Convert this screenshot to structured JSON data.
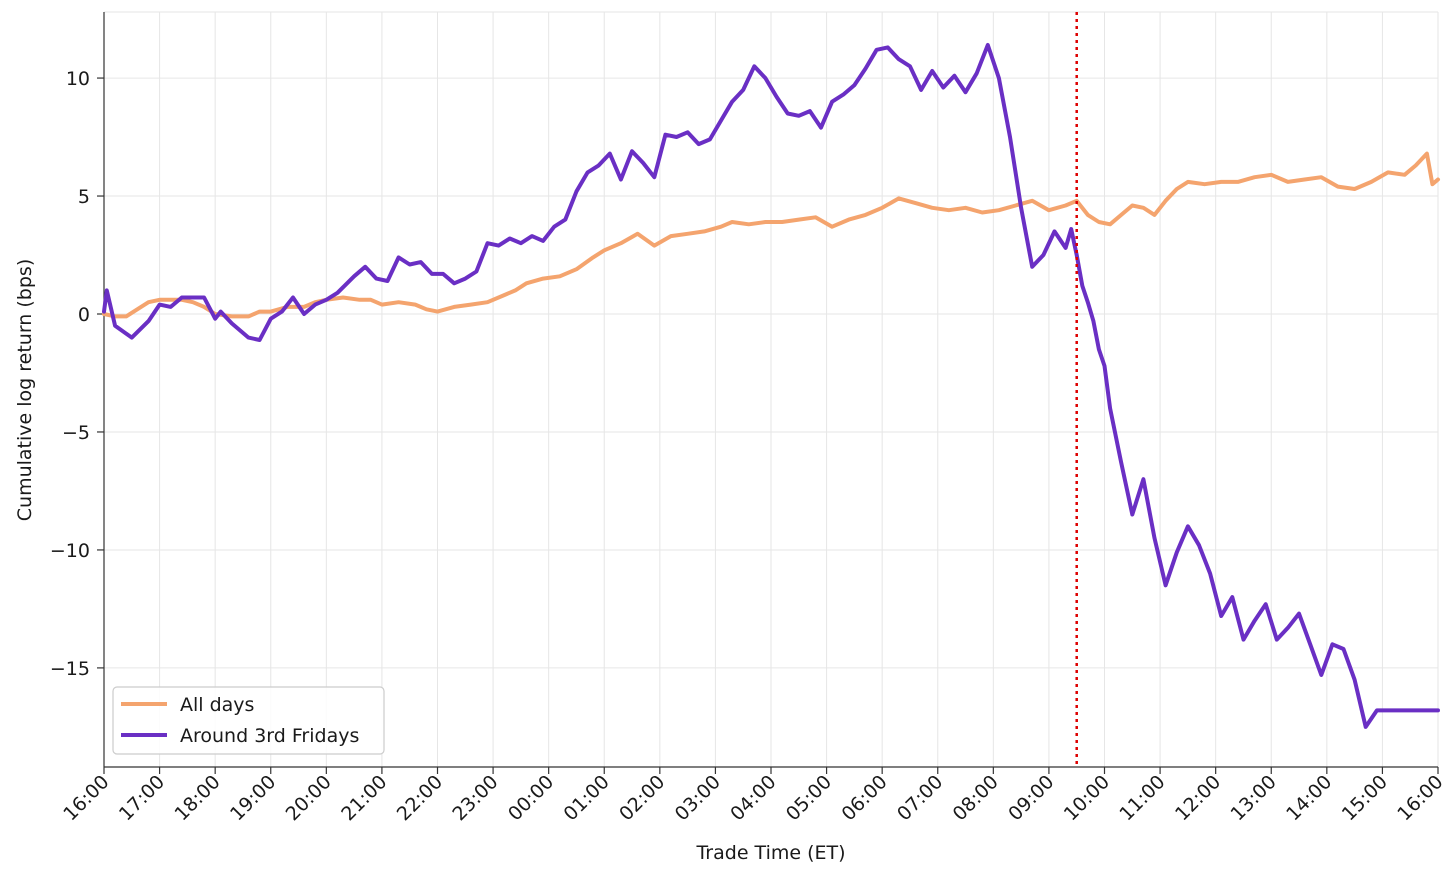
{
  "chart_data": {
    "type": "line",
    "title": "",
    "xlabel": "Trade Time (ET)",
    "ylabel": "Cumulative log return (bps)",
    "x_ticks": [
      "16:00",
      "17:00",
      "18:00",
      "19:00",
      "20:00",
      "21:00",
      "22:00",
      "23:00",
      "00:00",
      "01:00",
      "02:00",
      "03:00",
      "04:00",
      "05:00",
      "06:00",
      "07:00",
      "08:00",
      "09:00",
      "10:00",
      "11:00",
      "12:00",
      "13:00",
      "14:00",
      "15:00",
      "16:00"
    ],
    "xlim_hours": [
      0,
      24
    ],
    "y_ticks": [
      10,
      5,
      0,
      -5,
      -10,
      -15
    ],
    "y_tick_labels": [
      "10",
      "5",
      "0",
      "−5",
      "−10",
      "−15"
    ],
    "ylim": [
      -19.2,
      12.8
    ],
    "grid": true,
    "legend_position": "lower-left",
    "vline": {
      "x_hours": 17.5,
      "label_time": "09:30",
      "color": "#dd0000",
      "style": "dotted"
    },
    "series": [
      {
        "name": "All days",
        "color": "#f4a46e",
        "x_hours": [
          0,
          0.2,
          0.4,
          0.6,
          0.8,
          1.0,
          1.2,
          1.4,
          1.6,
          1.8,
          2.0,
          2.3,
          2.6,
          2.8,
          3.0,
          3.3,
          3.6,
          3.8,
          4.0,
          4.3,
          4.6,
          4.8,
          5.0,
          5.3,
          5.6,
          5.8,
          6.0,
          6.3,
          6.6,
          6.9,
          7.2,
          7.4,
          7.6,
          7.9,
          8.2,
          8.5,
          8.8,
          9.0,
          9.3,
          9.6,
          9.9,
          10.2,
          10.5,
          10.8,
          11.1,
          11.3,
          11.6,
          11.9,
          12.2,
          12.5,
          12.8,
          13.1,
          13.4,
          13.7,
          14.0,
          14.3,
          14.6,
          14.9,
          15.2,
          15.5,
          15.8,
          16.1,
          16.4,
          16.7,
          17.0,
          17.3,
          17.5,
          17.7,
          17.9,
          18.1,
          18.3,
          18.5,
          18.7,
          18.9,
          19.1,
          19.3,
          19.5,
          19.8,
          20.1,
          20.4,
          20.7,
          21.0,
          21.3,
          21.6,
          21.9,
          22.2,
          22.5,
          22.8,
          23.1,
          23.4,
          23.6,
          23.8,
          23.9,
          24.0
        ],
        "values": [
          0.0,
          -0.1,
          -0.1,
          0.2,
          0.5,
          0.6,
          0.6,
          0.6,
          0.5,
          0.3,
          0.0,
          -0.1,
          -0.1,
          0.1,
          0.1,
          0.3,
          0.3,
          0.5,
          0.6,
          0.7,
          0.6,
          0.6,
          0.4,
          0.5,
          0.4,
          0.2,
          0.1,
          0.3,
          0.4,
          0.5,
          0.8,
          1.0,
          1.3,
          1.5,
          1.6,
          1.9,
          2.4,
          2.7,
          3.0,
          3.4,
          2.9,
          3.3,
          3.4,
          3.5,
          3.7,
          3.9,
          3.8,
          3.9,
          3.9,
          4.0,
          4.1,
          3.7,
          4.0,
          4.2,
          4.5,
          4.9,
          4.7,
          4.5,
          4.4,
          4.5,
          4.3,
          4.4,
          4.6,
          4.8,
          4.4,
          4.6,
          4.8,
          4.2,
          3.9,
          3.8,
          4.2,
          4.6,
          4.5,
          4.2,
          4.8,
          5.3,
          5.6,
          5.5,
          5.6,
          5.6,
          5.8,
          5.9,
          5.6,
          5.7,
          5.8,
          5.4,
          5.3,
          5.6,
          6.0,
          5.9,
          6.3,
          6.8,
          5.5,
          5.7
        ]
      },
      {
        "name": "Around 3rd Fridays",
        "color": "#6a2fc4",
        "x_hours": [
          0,
          0.05,
          0.2,
          0.5,
          0.8,
          1.0,
          1.2,
          1.4,
          1.6,
          1.8,
          2.0,
          2.1,
          2.3,
          2.6,
          2.8,
          3.0,
          3.2,
          3.4,
          3.6,
          3.8,
          4.0,
          4.2,
          4.5,
          4.7,
          4.9,
          5.1,
          5.3,
          5.5,
          5.7,
          5.9,
          6.1,
          6.3,
          6.5,
          6.7,
          6.9,
          7.1,
          7.3,
          7.5,
          7.7,
          7.9,
          8.1,
          8.3,
          8.5,
          8.7,
          8.9,
          9.1,
          9.3,
          9.5,
          9.7,
          9.9,
          10.1,
          10.3,
          10.5,
          10.7,
          10.9,
          11.1,
          11.3,
          11.5,
          11.7,
          11.9,
          12.1,
          12.3,
          12.5,
          12.7,
          12.9,
          13.1,
          13.3,
          13.5,
          13.7,
          13.9,
          14.1,
          14.3,
          14.5,
          14.7,
          14.9,
          15.1,
          15.3,
          15.5,
          15.7,
          15.9,
          16.1,
          16.3,
          16.5,
          16.7,
          16.9,
          17.1,
          17.3,
          17.4,
          17.5,
          17.6,
          17.7,
          17.8,
          17.9,
          18.0,
          18.1,
          18.3,
          18.5,
          18.7,
          18.9,
          19.1,
          19.3,
          19.5,
          19.7,
          19.9,
          20.1,
          20.3,
          20.5,
          20.7,
          20.9,
          21.1,
          21.3,
          21.5,
          21.7,
          21.9,
          22.1,
          22.3,
          22.5,
          22.7,
          22.9,
          23.1,
          23.3,
          23.5,
          23.7,
          23.9,
          24.0
        ],
        "values": [
          0.1,
          1.0,
          -0.5,
          -1.0,
          -0.3,
          0.4,
          0.3,
          0.7,
          0.7,
          0.7,
          -0.2,
          0.1,
          -0.4,
          -1.0,
          -1.1,
          -0.2,
          0.1,
          0.7,
          0.0,
          0.4,
          0.6,
          0.9,
          1.6,
          2.0,
          1.5,
          1.4,
          2.4,
          2.1,
          2.2,
          1.7,
          1.7,
          1.3,
          1.5,
          1.8,
          3.0,
          2.9,
          3.2,
          3.0,
          3.3,
          3.1,
          3.7,
          4.0,
          5.2,
          6.0,
          6.3,
          6.8,
          5.7,
          6.9,
          6.4,
          5.8,
          7.6,
          7.5,
          7.7,
          7.2,
          7.4,
          8.2,
          9.0,
          9.5,
          10.5,
          10.0,
          9.2,
          8.5,
          8.4,
          8.6,
          7.9,
          9.0,
          9.3,
          9.7,
          10.4,
          11.2,
          11.3,
          10.8,
          10.5,
          9.5,
          10.3,
          9.6,
          10.1,
          9.4,
          10.2,
          11.4,
          10.0,
          7.5,
          4.5,
          2.0,
          2.5,
          3.5,
          2.8,
          3.6,
          2.5,
          1.2,
          0.5,
          -0.3,
          -1.5,
          -2.2,
          -4.0,
          -6.3,
          -8.5,
          -7.0,
          -9.5,
          -11.5,
          -10.1,
          -9.0,
          -9.8,
          -11.0,
          -12.8,
          -12.0,
          -13.8,
          -13.0,
          -12.3,
          -13.8,
          -13.3,
          -12.7,
          -14.0,
          -15.3,
          -14.0,
          -14.2,
          -15.5,
          -17.5,
          -16.8,
          -16.8,
          -16.8,
          -16.8,
          -16.8,
          -16.8,
          -16.8
        ]
      }
    ]
  }
}
